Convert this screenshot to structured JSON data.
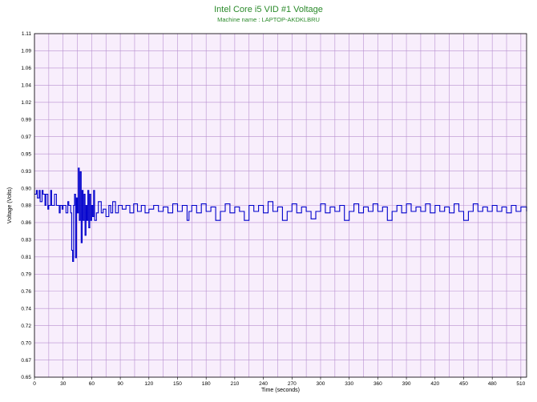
{
  "chart_data": {
    "type": "line",
    "title": "Intel Core i5 VID #1 Voltage",
    "subtitle": "Machine name : LAPTOP-AKDKLBRU",
    "xlabel": "Time (seconds)",
    "ylabel": "Voltage (Volts)",
    "xlim": [
      0,
      516
    ],
    "ylim": [
      0.65,
      1.11
    ],
    "x_ticks": [
      0,
      30,
      60,
      90,
      120,
      150,
      180,
      210,
      240,
      270,
      300,
      330,
      360,
      390,
      420,
      450,
      480,
      510
    ],
    "y_ticks": [
      "0.65",
      "0.67",
      "0.70",
      "0.72",
      "0.74",
      "0.76",
      "0.79",
      "0.81",
      "0.83",
      "0.86",
      "0.88",
      "0.90",
      "0.93",
      "0.95",
      "0.97",
      "0.99",
      "1.02",
      "1.04",
      "1.06",
      "1.09",
      "1.11"
    ],
    "grid": true,
    "line_color": "#0000cc",
    "plot_background": "#f8eefc",
    "series": [
      {
        "x": [
          0,
          2,
          3,
          5,
          6,
          8,
          9,
          11,
          12,
          14,
          15,
          17,
          18,
          20,
          21,
          23,
          24,
          26,
          27,
          29,
          30,
          32,
          33,
          35,
          36,
          38,
          39,
          40,
          41,
          42,
          43,
          44,
          45,
          46,
          47,
          48,
          49,
          50,
          51,
          52,
          53,
          54,
          55,
          56,
          57,
          58,
          59,
          60,
          61,
          62,
          63,
          65,
          67,
          70,
          72,
          75,
          78,
          80,
          82,
          85,
          88,
          92,
          96,
          100,
          104,
          108,
          112,
          116,
          120,
          125,
          130,
          135,
          140,
          145,
          150,
          155,
          160,
          162,
          165,
          170,
          175,
          180,
          185,
          190,
          195,
          200,
          205,
          210,
          215,
          220,
          225,
          230,
          235,
          240,
          245,
          250,
          255,
          260,
          265,
          270,
          275,
          280,
          285,
          290,
          295,
          300,
          305,
          310,
          315,
          320,
          325,
          330,
          335,
          340,
          345,
          350,
          355,
          360,
          365,
          370,
          375,
          380,
          385,
          390,
          395,
          400,
          405,
          410,
          415,
          420,
          425,
          430,
          435,
          440,
          445,
          450,
          455,
          460,
          465,
          470,
          475,
          480,
          485,
          490,
          495,
          500,
          505,
          510,
          516
        ],
        "y": [
          0.895,
          0.9,
          0.89,
          0.9,
          0.885,
          0.9,
          0.895,
          0.88,
          0.895,
          0.875,
          0.88,
          0.9,
          0.88,
          0.88,
          0.895,
          0.88,
          0.88,
          0.87,
          0.88,
          0.875,
          0.88,
          0.88,
          0.87,
          0.885,
          0.88,
          0.87,
          0.82,
          0.805,
          0.88,
          0.895,
          0.81,
          0.89,
          0.87,
          0.93,
          0.86,
          0.925,
          0.83,
          0.9,
          0.86,
          0.895,
          0.84,
          0.88,
          0.86,
          0.9,
          0.85,
          0.895,
          0.86,
          0.88,
          0.865,
          0.9,
          0.86,
          0.87,
          0.885,
          0.87,
          0.875,
          0.865,
          0.88,
          0.87,
          0.885,
          0.87,
          0.88,
          0.875,
          0.88,
          0.87,
          0.882,
          0.872,
          0.88,
          0.87,
          0.875,
          0.88,
          0.872,
          0.878,
          0.87,
          0.882,
          0.872,
          0.88,
          0.86,
          0.872,
          0.88,
          0.87,
          0.882,
          0.872,
          0.878,
          0.86,
          0.872,
          0.882,
          0.87,
          0.878,
          0.872,
          0.86,
          0.88,
          0.872,
          0.88,
          0.87,
          0.885,
          0.872,
          0.878,
          0.86,
          0.872,
          0.882,
          0.87,
          0.878,
          0.872,
          0.862,
          0.872,
          0.882,
          0.87,
          0.878,
          0.872,
          0.88,
          0.86,
          0.872,
          0.882,
          0.87,
          0.878,
          0.872,
          0.882,
          0.872,
          0.878,
          0.86,
          0.872,
          0.88,
          0.87,
          0.882,
          0.872,
          0.878,
          0.872,
          0.882,
          0.87,
          0.88,
          0.872,
          0.878,
          0.87,
          0.882,
          0.872,
          0.86,
          0.872,
          0.882,
          0.872,
          0.878,
          0.872,
          0.88,
          0.872,
          0.878,
          0.87,
          0.88,
          0.872,
          0.878,
          0.872
        ]
      }
    ]
  }
}
